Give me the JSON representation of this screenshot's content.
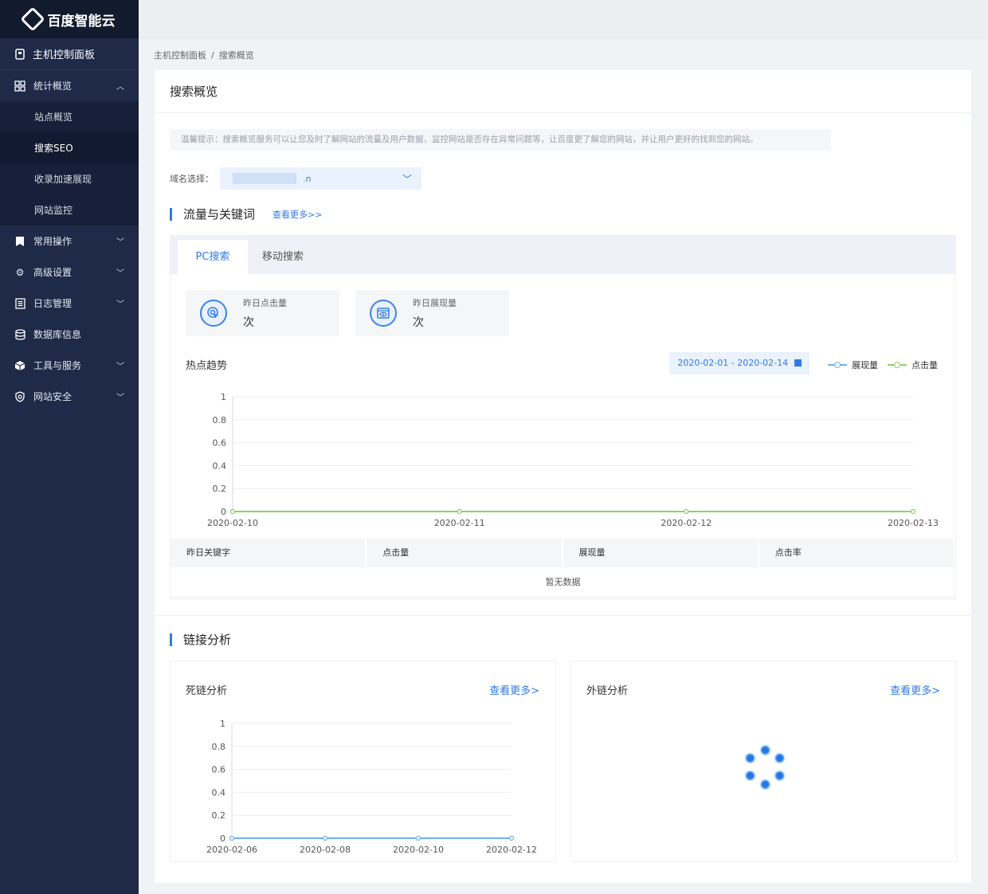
{
  "brand": {
    "name": "百度智能云"
  },
  "sidebar": {
    "top": {
      "label": "主机控制面板",
      "icon": "console-icon"
    },
    "stats": {
      "label": "统计概览",
      "icon": "grid-icon",
      "subs": [
        "站点概览",
        "搜索SEO",
        "收录加速展现",
        "网站监控"
      ],
      "active_index": 1
    },
    "items": [
      {
        "label": "常用操作",
        "icon": "bookmark-icon",
        "expandable": true
      },
      {
        "label": "高级设置",
        "icon": "gear-icon",
        "expandable": true
      },
      {
        "label": "日志管理",
        "icon": "log-icon",
        "expandable": true
      },
      {
        "label": "数据库信息",
        "icon": "database-icon",
        "expandable": false
      },
      {
        "label": "工具与服务",
        "icon": "box-icon",
        "expandable": true
      },
      {
        "label": "网站安全",
        "icon": "shield-search-icon",
        "expandable": true
      }
    ]
  },
  "breadcrumb": {
    "root": "主机控制面板",
    "sep": "/",
    "current": "搜索概览"
  },
  "page": {
    "title": "搜索概览",
    "tip": "温馨提示：搜索概览服务可以让您及时了解网站的流量及用户数据，监控网站是否存在异常问题等，让百度更了解您的网站，并让用户更好的找到您的网站。",
    "domain_label": "域名选择：",
    "domain_value": ".n"
  },
  "traffic": {
    "title": "流量与关键词",
    "more": "查看更多>>",
    "tabs": [
      "PC搜索",
      "移动搜索"
    ],
    "active_tab": 0,
    "stats": [
      {
        "label": "昨日点击量",
        "value": "次",
        "icon": "cursor-click-icon"
      },
      {
        "label": "昨日展现量",
        "value": "次",
        "icon": "browser-view-icon"
      }
    ],
    "trend_title": "热点趋势",
    "date_range": "2020-02-01 - 2020-02-14",
    "table": {
      "headers": [
        "昨日关键字",
        "点击量",
        "展现量",
        "点击率"
      ],
      "empty": "暂无数据"
    }
  },
  "links": {
    "title": "链接分析",
    "dead": {
      "title": "死链分析",
      "more": "查看更多>"
    },
    "external": {
      "title": "外链分析",
      "more": "查看更多>"
    }
  },
  "colors": {
    "accent": "#2f7be6",
    "sidebar_bg": "#1e2a47",
    "impressions": "#6fb0f2",
    "clicks": "#8ed16b"
  },
  "chart_data": [
    {
      "type": "line",
      "x": [
        "2020-02-10",
        "2020-02-11",
        "2020-02-12",
        "2020-02-13"
      ],
      "ylim": [
        0,
        1
      ],
      "yticks": [
        "0",
        "0.2",
        "0.4",
        "0.6",
        "0.8",
        "1"
      ],
      "legend": "top-right",
      "series": [
        {
          "name": "展现量",
          "values": [
            0,
            0,
            0,
            0
          ]
        },
        {
          "name": "点击量",
          "values": [
            0,
            0,
            0,
            0
          ]
        }
      ]
    },
    {
      "type": "line",
      "x": [
        "2020-02-06",
        "2020-02-08",
        "2020-02-10",
        "2020-02-12"
      ],
      "ylim": [
        0,
        1
      ],
      "yticks": [
        "0",
        "0.2",
        "0.4",
        "0.6",
        "0.8",
        "1"
      ],
      "series": [
        {
          "values": [
            0,
            0,
            0,
            0
          ]
        }
      ]
    }
  ]
}
